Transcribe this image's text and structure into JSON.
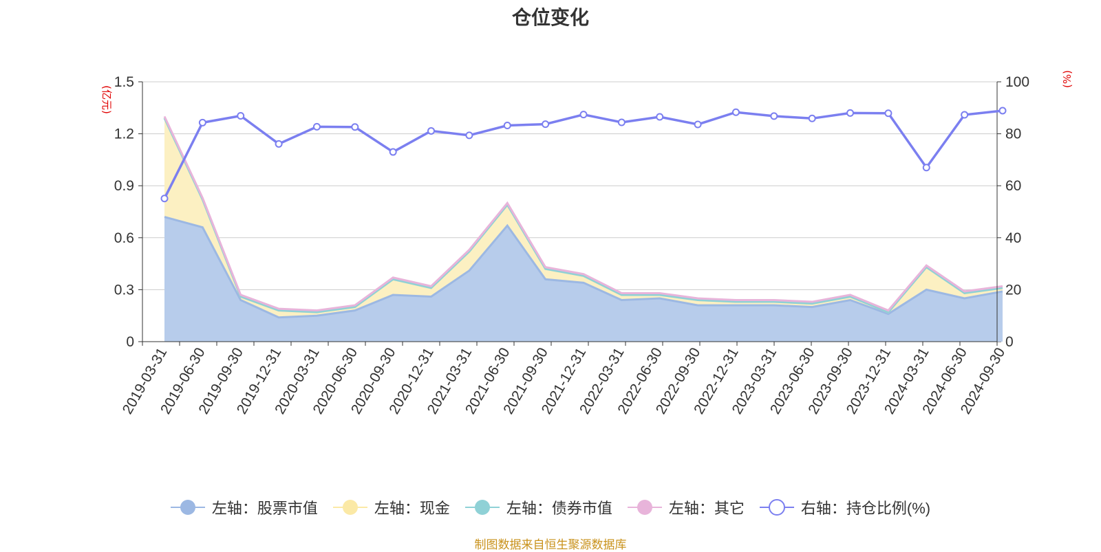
{
  "title": "仓位变化",
  "source": "制图数据来自恒生聚源数据库",
  "legend": [
    {
      "label": "左轴：股票市值",
      "color": "#9cb8e3",
      "shape": "filled"
    },
    {
      "label": "左轴：现金",
      "color": "#fbe9a6",
      "shape": "filled"
    },
    {
      "label": "左轴：债券市值",
      "color": "#8fd1d6",
      "shape": "filled"
    },
    {
      "label": "左轴：其它",
      "color": "#e8b4da",
      "shape": "filled"
    },
    {
      "label": "右轴：持仓比例(%)",
      "color": "#7b7ff0",
      "shape": "hollow"
    }
  ],
  "chart_data": {
    "type": "area",
    "title": "仓位变化",
    "x": [
      "2019-03-31",
      "2019-06-30",
      "2019-09-30",
      "2019-12-31",
      "2020-03-31",
      "2020-06-30",
      "2020-09-30",
      "2020-12-31",
      "2021-03-31",
      "2021-06-30",
      "2021-09-30",
      "2021-12-31",
      "2022-03-31",
      "2022-06-30",
      "2022-09-30",
      "2022-12-31",
      "2023-03-31",
      "2023-06-30",
      "2023-09-30",
      "2023-12-31",
      "2024-03-31",
      "2024-06-30",
      "2024-09-30"
    ],
    "left_axis": {
      "unit": "(亿元)",
      "ylim": [
        0,
        1.5
      ],
      "ticks": [
        "0",
        "0.3",
        "0.6",
        "0.9",
        "1.2",
        "1.5"
      ],
      "tick_values": [
        0,
        0.3,
        0.6,
        0.9,
        1.2,
        1.5
      ]
    },
    "right_axis": {
      "unit": "(%)",
      "ylim": [
        0,
        100
      ],
      "ticks": [
        "0",
        "20",
        "40",
        "60",
        "80",
        "100"
      ],
      "tick_values": [
        0,
        20,
        40,
        60,
        80,
        100
      ]
    },
    "grid": true,
    "legend_position": "bottom",
    "series": [
      {
        "name": "左轴：股票市值",
        "axis": "left",
        "kind": "stacked-area",
        "color": "#9cb8e3",
        "fill": "#b7cceb",
        "values": [
          0.72,
          0.66,
          0.24,
          0.14,
          0.15,
          0.18,
          0.27,
          0.26,
          0.41,
          0.67,
          0.36,
          0.34,
          0.24,
          0.25,
          0.21,
          0.21,
          0.21,
          0.2,
          0.24,
          0.16,
          0.3,
          0.25,
          0.29
        ]
      },
      {
        "name": "左轴：现金",
        "axis": "left",
        "kind": "stacked-area",
        "color": "#fbe9a6",
        "fill": "#fcf0c2",
        "values": [
          0.57,
          0.16,
          0.02,
          0.04,
          0.02,
          0.02,
          0.09,
          0.05,
          0.11,
          0.12,
          0.06,
          0.04,
          0.03,
          0.02,
          0.03,
          0.02,
          0.02,
          0.02,
          0.02,
          0.01,
          0.13,
          0.03,
          0.02
        ]
      },
      {
        "name": "左轴：债券市值",
        "axis": "left",
        "kind": "stacked-area",
        "color": "#8fd1d6",
        "fill": "#bfe4e6",
        "values": [
          0,
          0,
          0,
          0,
          0,
          0,
          0,
          0,
          0,
          0,
          0,
          0,
          0,
          0,
          0,
          0,
          0,
          0,
          0,
          0,
          0,
          0,
          0
        ]
      },
      {
        "name": "左轴：其它",
        "axis": "left",
        "kind": "stacked-area",
        "color": "#e8b4da",
        "fill": "#efcbe6",
        "values": [
          0.01,
          0.01,
          0.01,
          0.01,
          0.01,
          0.01,
          0.01,
          0.01,
          0.01,
          0.01,
          0.01,
          0.01,
          0.01,
          0.01,
          0.01,
          0.01,
          0.01,
          0.01,
          0.01,
          0.01,
          0.01,
          0.01,
          0.01
        ]
      },
      {
        "name": "右轴：持仓比例(%)",
        "axis": "right",
        "kind": "line",
        "color": "#7b7ff0",
        "values": [
          55.1,
          84.3,
          86.9,
          76.1,
          82.7,
          82.6,
          73.0,
          81.1,
          79.4,
          83.2,
          83.7,
          87.4,
          84.4,
          86.5,
          83.6,
          88.3,
          86.8,
          85.9,
          88.0,
          87.9,
          67.0,
          87.3,
          88.9
        ]
      }
    ]
  }
}
